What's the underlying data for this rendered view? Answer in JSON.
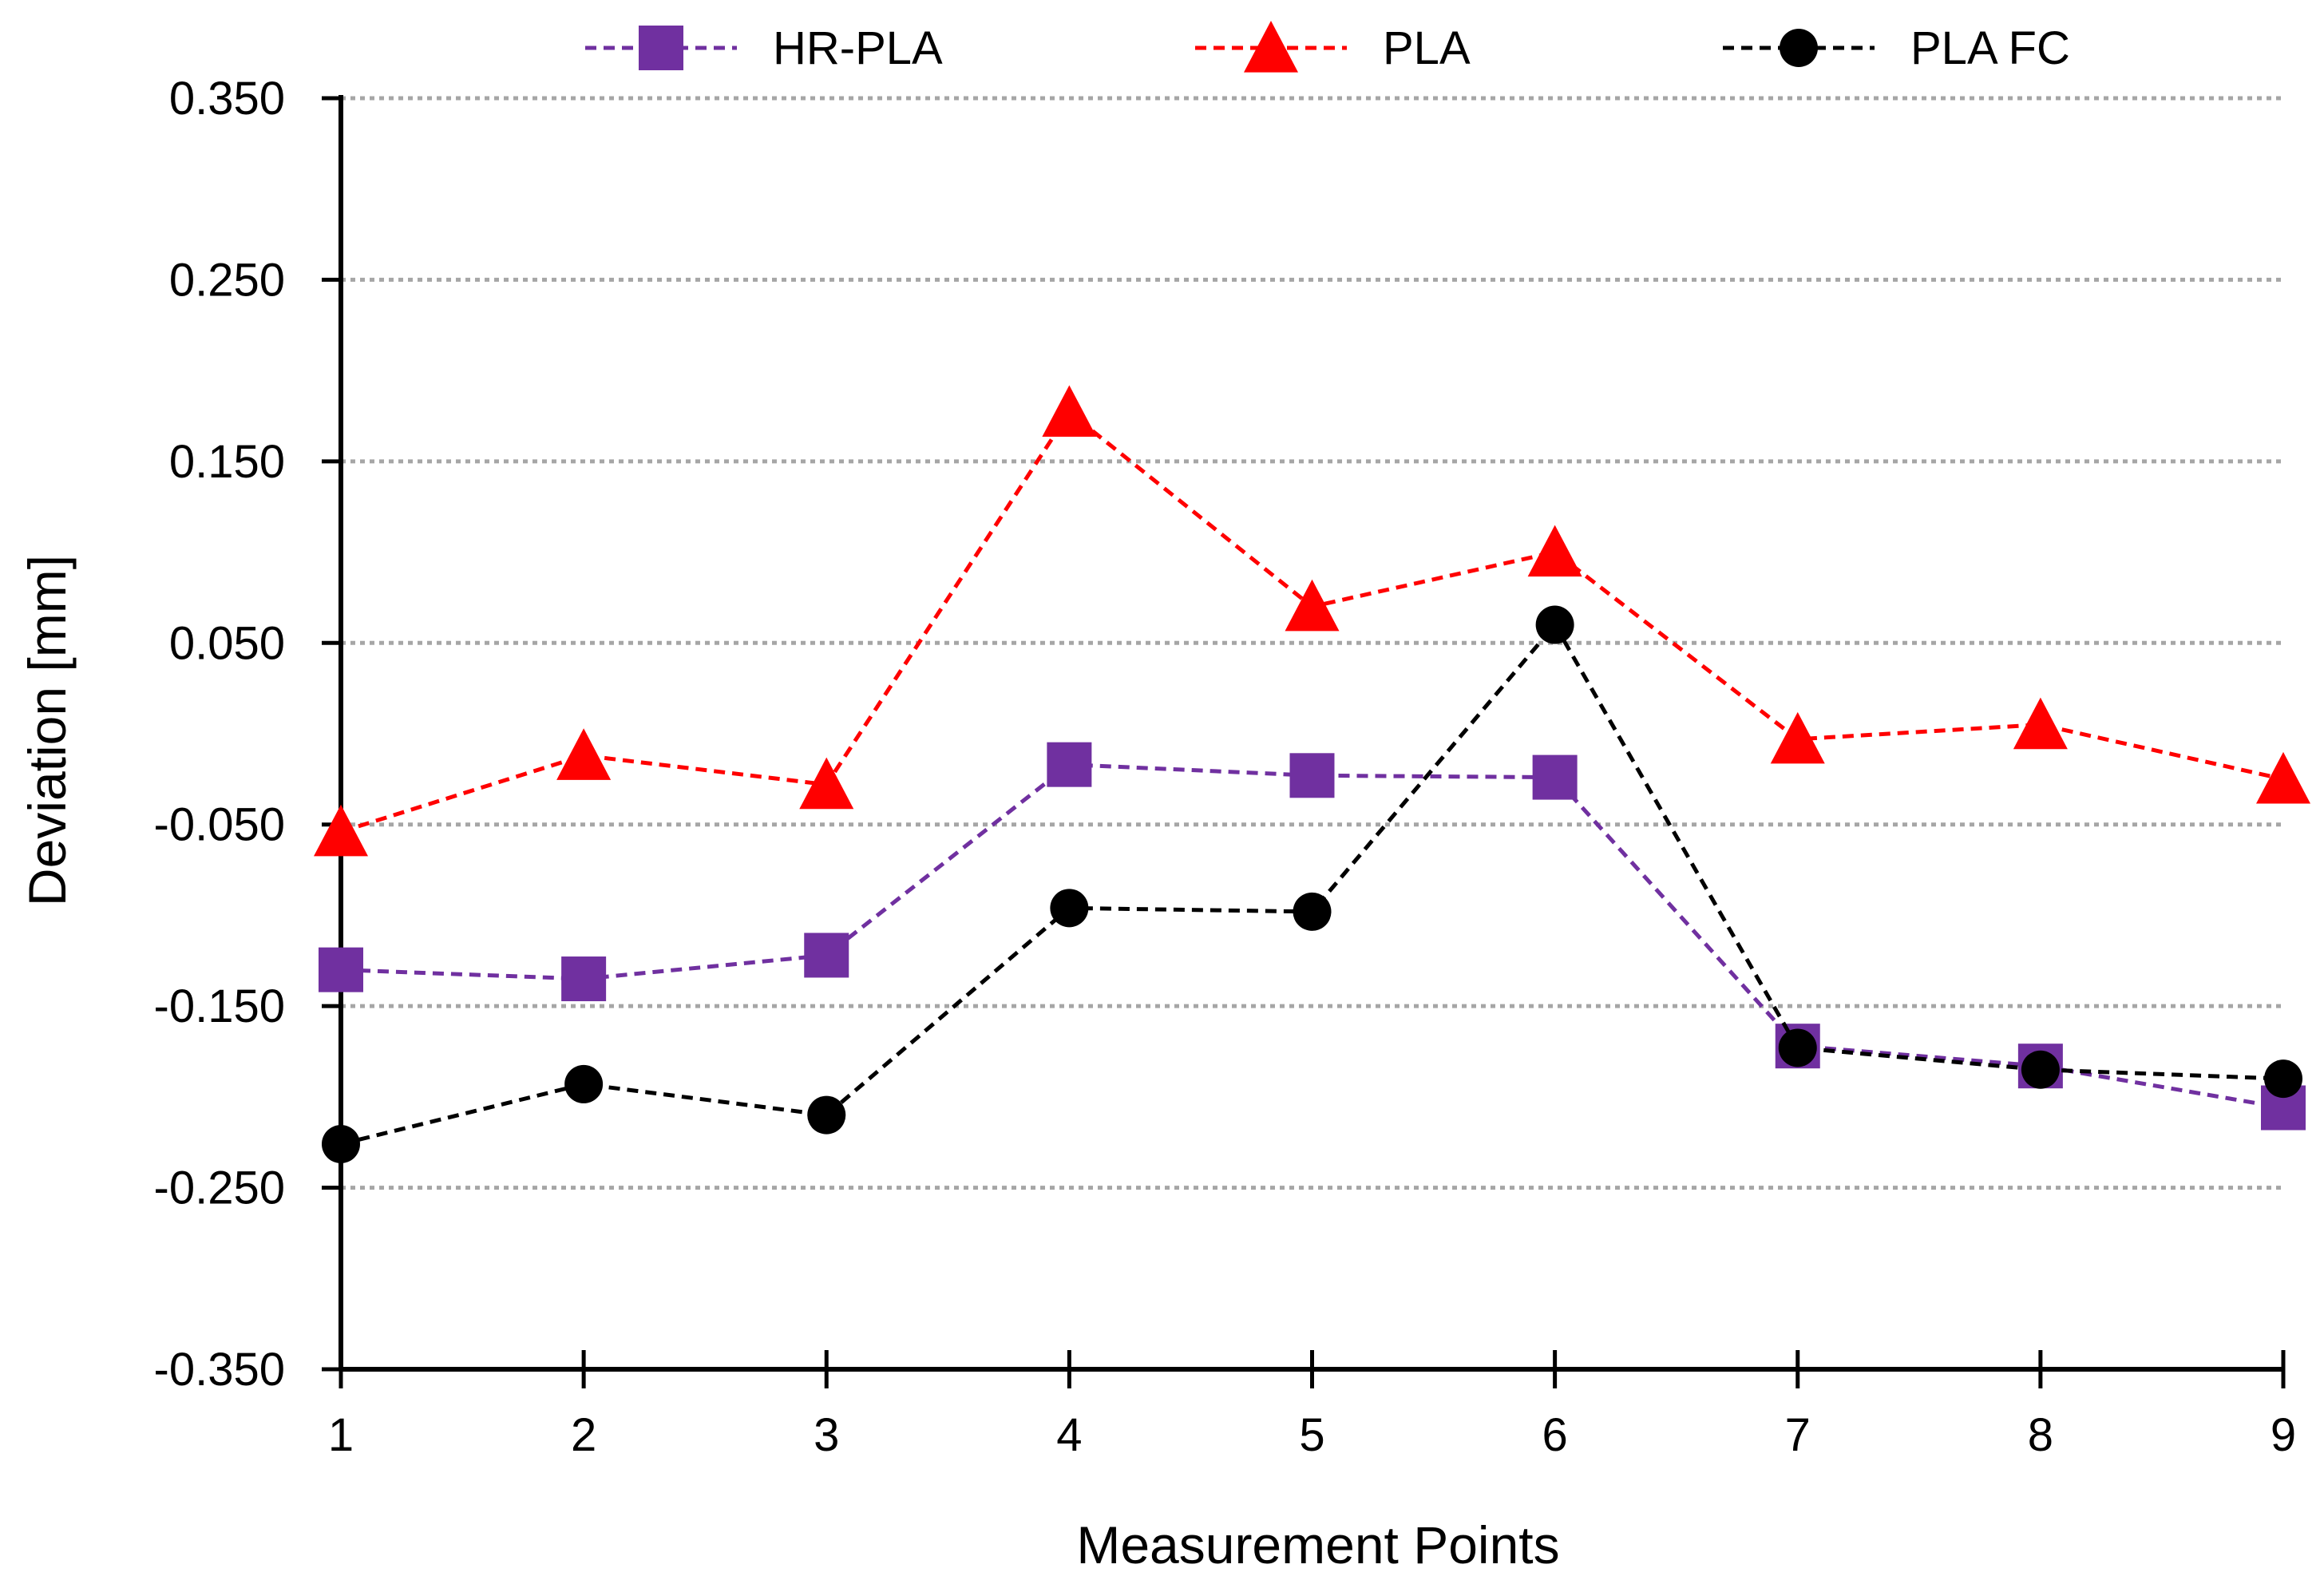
{
  "chart_data": {
    "type": "line",
    "title": "",
    "xlabel": "Measurement Points",
    "ylabel": "Deviation [mm]",
    "categories": [
      "1",
      "2",
      "3",
      "4",
      "5",
      "6",
      "7",
      "8",
      "9"
    ],
    "ylim": [
      -0.35,
      0.35
    ],
    "yticks": [
      0.35,
      0.25,
      0.15,
      0.05,
      -0.05,
      -0.15,
      -0.25,
      -0.35
    ],
    "ytick_labels": [
      "0.350",
      "0.250",
      "0.150",
      "0.050",
      "-0.050",
      "-0.150",
      "-0.250",
      "-0.350"
    ],
    "grid": "horizontal dotted",
    "legend_position": "top",
    "series": [
      {
        "name": "HR-PLA",
        "color": "#7030a0",
        "marker": "square",
        "line_style": "dashed",
        "values": [
          -0.13,
          -0.135,
          -0.122,
          -0.017,
          -0.023,
          -0.024,
          -0.172,
          -0.183,
          -0.206
        ]
      },
      {
        "name": "PLA",
        "color": "#ff0000",
        "marker": "triangle",
        "line_style": "dashed",
        "values": [
          -0.054,
          -0.012,
          -0.028,
          0.177,
          0.07,
          0.1,
          -0.003,
          0.005,
          -0.025
        ]
      },
      {
        "name": "PLA FC",
        "color": "#000000",
        "marker": "circle",
        "line_style": "dashed",
        "values": [
          -0.226,
          -0.193,
          -0.21,
          -0.096,
          -0.098,
          0.06,
          -0.173,
          -0.185,
          -0.19
        ]
      }
    ]
  }
}
